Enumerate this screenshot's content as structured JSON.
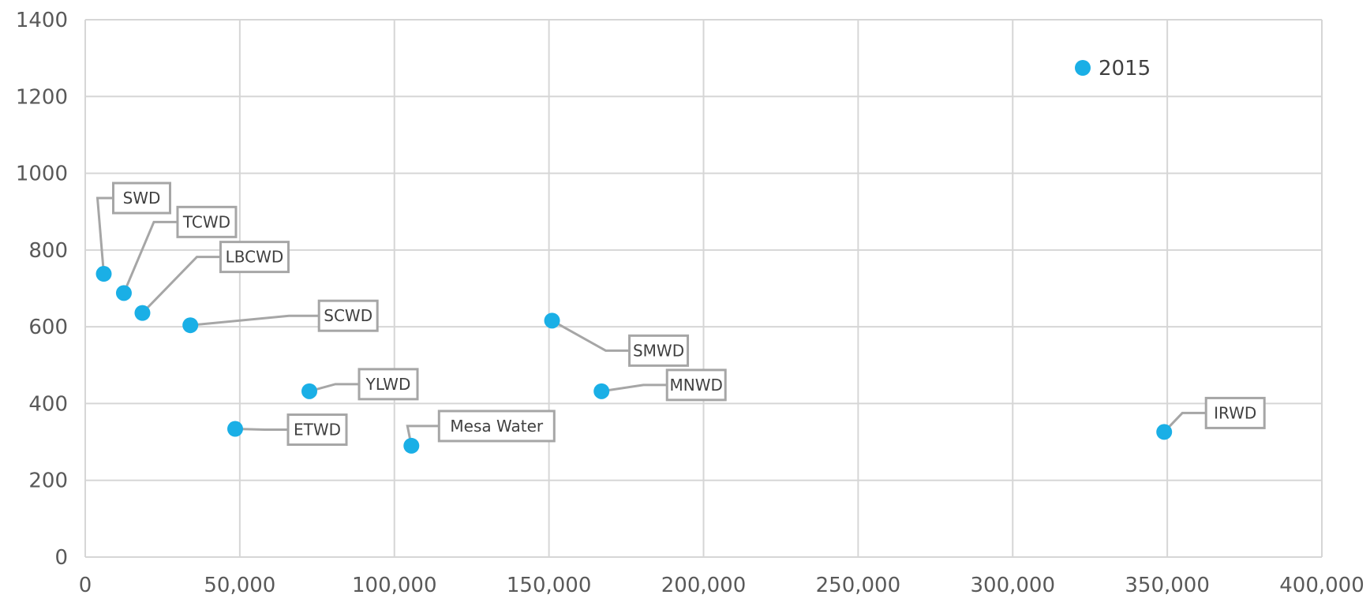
{
  "chart_data": {
    "type": "scatter",
    "title": "",
    "xlabel": "",
    "ylabel": "",
    "xlim": [
      0,
      400000
    ],
    "ylim": [
      0,
      1400
    ],
    "x_ticks": [
      0,
      50000,
      100000,
      150000,
      200000,
      250000,
      300000,
      350000,
      400000
    ],
    "x_tick_labels": [
      "0",
      "50,000",
      "100,000",
      "150,000",
      "200,000",
      "250,000",
      "300,000",
      "350,000",
      "400,000"
    ],
    "y_ticks": [
      0,
      200,
      400,
      600,
      800,
      1000,
      1200,
      1400
    ],
    "y_tick_labels": [
      "0",
      "200",
      "400",
      "600",
      "800",
      "1000",
      "1200",
      "1400"
    ],
    "grid": true,
    "legend_position": "top-right",
    "series": [
      {
        "name": "2015",
        "color": "#1AAFE6",
        "points": [
          {
            "label": "SWD",
            "x": 6000,
            "y": 738
          },
          {
            "label": "TCWD",
            "x": 12500,
            "y": 688
          },
          {
            "label": "LBCWD",
            "x": 18500,
            "y": 636
          },
          {
            "label": "SCWD",
            "x": 34000,
            "y": 604
          },
          {
            "label": "ETWD",
            "x": 48500,
            "y": 334
          },
          {
            "label": "YLWD",
            "x": 72500,
            "y": 432
          },
          {
            "label": "Mesa Water",
            "x": 105500,
            "y": 290
          },
          {
            "label": "SMWD",
            "x": 151000,
            "y": 616
          },
          {
            "label": "MNWD",
            "x": 167000,
            "y": 432
          },
          {
            "label": "IRWD",
            "x": 349000,
            "y": 326
          }
        ]
      }
    ]
  }
}
